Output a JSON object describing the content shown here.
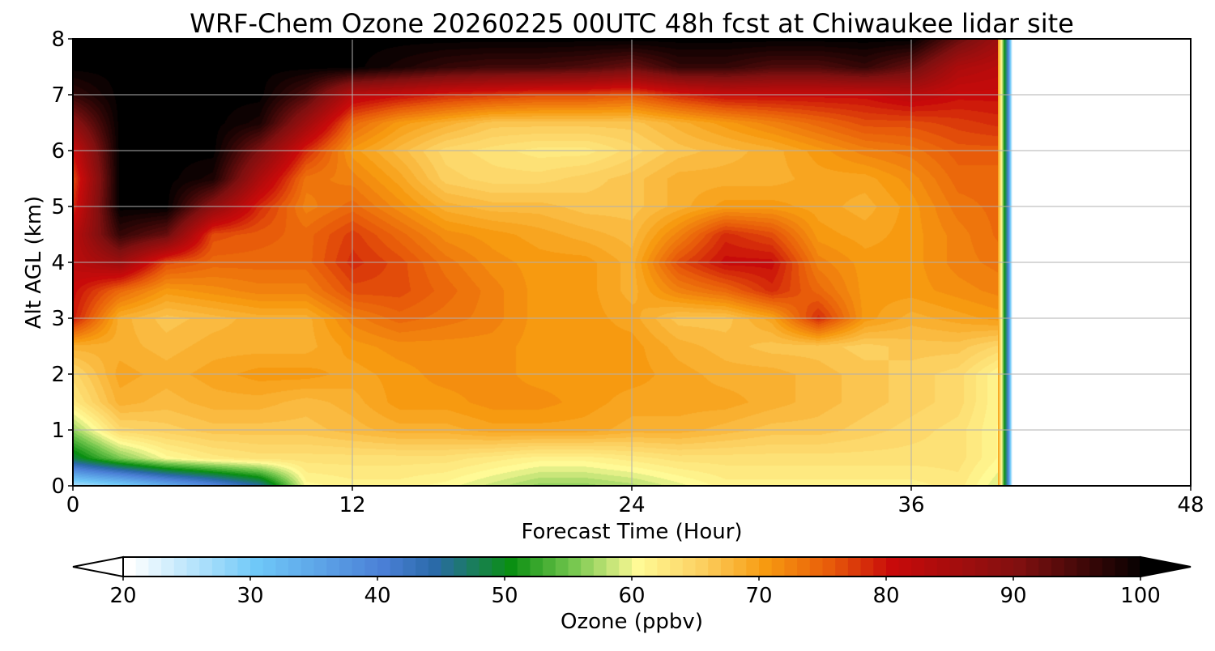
{
  "chart_data": {
    "type": "heatmap",
    "title": "WRF-Chem Ozone  20260225 00UTC 48h fcst at Chiwaukee lidar site",
    "xlabel": "Forecast Time (Hour)",
    "ylabel": "Alt AGL (km)",
    "xlim": [
      0,
      48
    ],
    "ylim": [
      0,
      8
    ],
    "x_ticks": [
      0,
      12,
      24,
      36,
      48
    ],
    "y_ticks": [
      0,
      1,
      2,
      3,
      4,
      5,
      6,
      7,
      8
    ],
    "grid": true,
    "data_end_hour": 40,
    "x": [
      0,
      2,
      4,
      6,
      8,
      10,
      12,
      14,
      16,
      18,
      20,
      22,
      24,
      26,
      28,
      30,
      32,
      34,
      36,
      38,
      40
    ],
    "y": [
      0,
      0.5,
      1,
      1.5,
      2,
      2.5,
      3,
      3.5,
      4,
      4.5,
      5,
      5.5,
      6,
      6.5,
      7,
      7.5,
      8
    ],
    "z": [
      [
        25,
        28,
        33,
        38,
        44,
        60,
        61,
        61,
        60,
        58,
        56,
        56,
        57,
        59,
        61,
        61,
        61,
        61,
        61,
        62,
        58
      ],
      [
        48,
        55,
        60,
        62,
        63,
        63,
        63,
        63,
        63,
        62,
        61,
        61,
        62,
        63,
        63,
        63,
        63,
        63,
        63,
        63,
        60
      ],
      [
        56,
        64,
        65,
        66,
        66,
        66,
        67,
        68,
        68,
        69,
        69,
        69,
        68,
        68,
        67,
        66,
        66,
        65,
        64,
        63,
        60
      ],
      [
        62,
        68,
        67,
        68,
        68,
        67,
        68,
        70,
        70,
        71,
        71,
        70,
        69,
        69,
        69,
        68,
        67,
        66,
        65,
        64,
        60
      ],
      [
        64,
        69,
        68,
        69,
        70,
        70,
        69,
        70,
        71,
        71,
        70,
        70,
        70,
        69,
        68,
        68,
        67,
        66,
        65,
        64,
        60
      ],
      [
        68,
        68,
        67,
        68,
        68,
        68,
        70,
        71,
        71,
        71,
        70,
        70,
        70,
        68,
        67,
        66,
        66,
        65,
        66,
        66,
        64
      ],
      [
        79,
        68,
        66,
        67,
        68,
        68,
        72,
        74,
        73,
        72,
        70,
        70,
        69,
        66,
        66,
        69,
        78,
        70,
        68,
        69,
        70
      ],
      [
        80,
        74,
        70,
        71,
        72,
        72,
        76,
        76,
        74,
        72,
        70,
        70,
        68,
        72,
        74,
        78,
        74,
        70,
        70,
        71,
        72
      ],
      [
        82,
        86,
        76,
        74,
        74,
        74,
        78,
        76,
        73,
        71,
        70,
        70,
        68,
        76,
        80,
        80,
        72,
        70,
        70,
        72,
        73
      ],
      [
        82,
        96,
        92,
        76,
        75,
        74,
        77,
        74,
        71,
        70,
        69,
        68,
        67,
        72,
        78,
        76,
        70,
        69,
        70,
        72,
        74
      ],
      [
        78,
        100,
        100,
        88,
        78,
        72,
        74,
        71,
        68,
        67,
        67,
        66,
        66,
        68,
        70,
        70,
        69,
        68,
        70,
        73,
        74
      ],
      [
        76,
        100,
        100,
        98,
        84,
        73,
        72,
        69,
        65,
        64,
        64,
        65,
        66,
        68,
        68,
        68,
        69,
        69,
        71,
        74,
        74
      ],
      [
        80,
        100,
        100,
        100,
        90,
        78,
        70,
        67,
        64,
        63,
        62,
        62,
        64,
        66,
        67,
        68,
        70,
        72,
        73,
        75,
        75
      ],
      [
        88,
        100,
        100,
        100,
        98,
        86,
        74,
        70,
        68,
        66,
        66,
        66,
        66,
        68,
        70,
        72,
        74,
        76,
        76,
        77,
        78
      ],
      [
        96,
        100,
        100,
        100,
        100,
        94,
        82,
        80,
        78,
        77,
        76,
        76,
        75,
        78,
        80,
        80,
        80,
        80,
        82,
        80,
        80
      ],
      [
        100,
        100,
        100,
        100,
        100,
        100,
        100,
        98,
        96,
        95,
        95,
        94,
        92,
        96,
        96,
        94,
        94,
        96,
        92,
        84,
        82
      ],
      [
        100,
        100,
        100,
        100,
        100,
        100,
        100,
        100,
        100,
        100,
        100,
        100,
        100,
        100,
        100,
        100,
        100,
        100,
        100,
        92,
        85
      ]
    ],
    "colorbar": {
      "label": "Ozone  (ppbv)",
      "ticks": [
        20,
        30,
        40,
        50,
        60,
        70,
        80,
        90,
        100
      ],
      "min": 20,
      "max": 100,
      "extend": "both",
      "color_stops": [
        {
          "v": 20,
          "c": "#ffffff"
        },
        {
          "v": 30,
          "c": "#6fc8f8"
        },
        {
          "v": 40,
          "c": "#4a7fd6"
        },
        {
          "v": 44,
          "c": "#2a6aa8"
        },
        {
          "v": 50,
          "c": "#0a8f12"
        },
        {
          "v": 55,
          "c": "#78c850"
        },
        {
          "v": 60,
          "c": "#fffa96"
        },
        {
          "v": 65,
          "c": "#fcd060"
        },
        {
          "v": 70,
          "c": "#f79a10"
        },
        {
          "v": 75,
          "c": "#e85c0a"
        },
        {
          "v": 80,
          "c": "#c80a0a"
        },
        {
          "v": 90,
          "c": "#801010"
        },
        {
          "v": 100,
          "c": "#000000"
        }
      ]
    }
  }
}
